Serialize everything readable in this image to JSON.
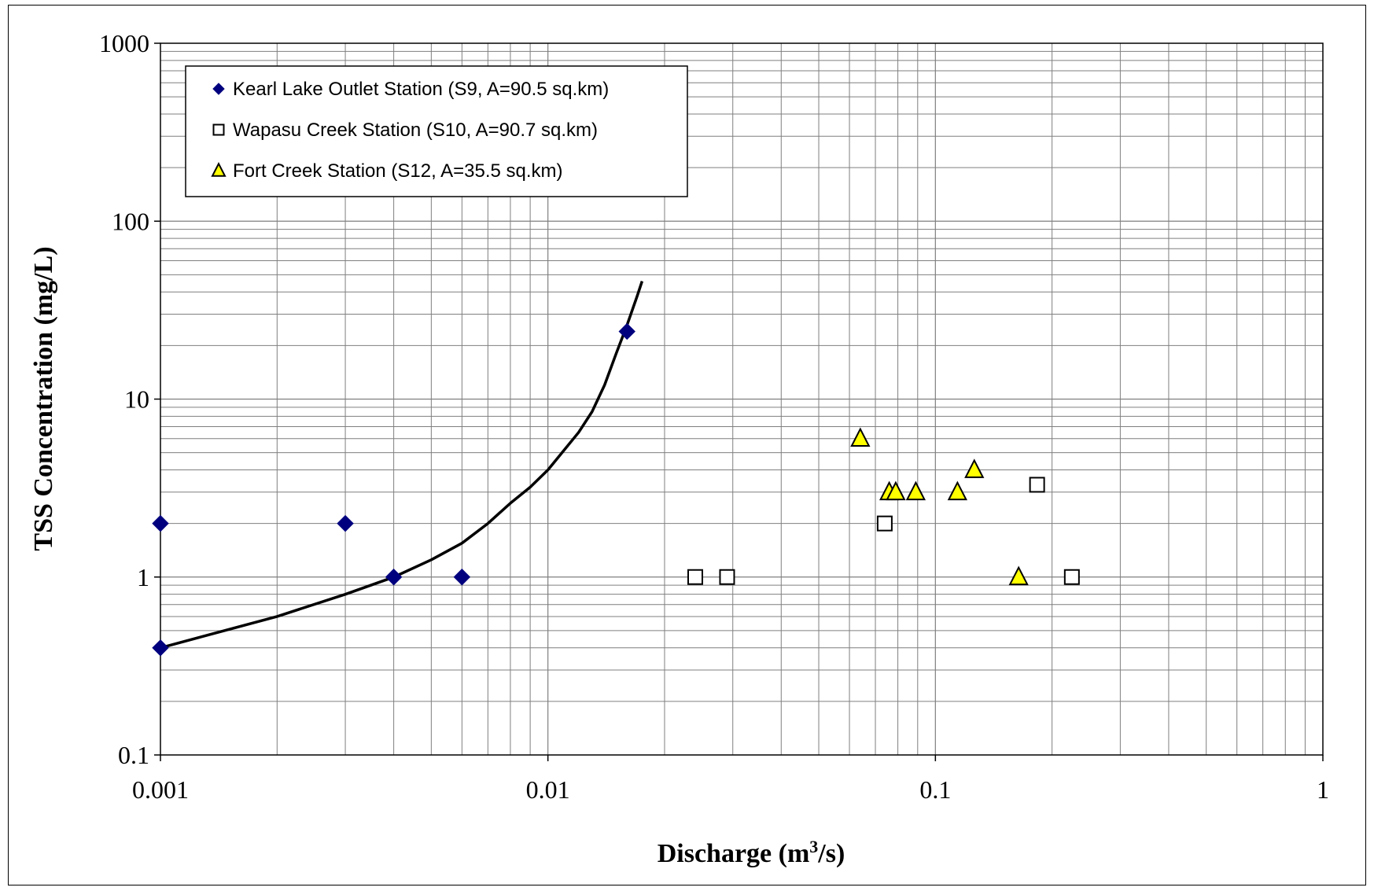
{
  "chart_data": {
    "type": "scatter",
    "x_scale": "log",
    "y_scale": "log",
    "xlim": [
      0.001,
      1
    ],
    "ylim": [
      0.1,
      1000
    ],
    "grid": true,
    "legend_position": "top-left",
    "xlabel": {
      "main": "Discharge (m",
      "sup": "3",
      "end": "/s)"
    },
    "ylabel": "TSS Concentration (mg/L)",
    "x_ticks": [
      "0.001",
      "0.01",
      "0.1",
      "1"
    ],
    "y_ticks": [
      "0.1",
      "1",
      "10",
      "100",
      "1000"
    ],
    "series": [
      {
        "name": "Kearl Lake Outlet Station (S9, A=90.5 sq.km)",
        "marker": "diamond",
        "color": "#00007f",
        "points": [
          [
            0.001,
            2
          ],
          [
            0.001,
            0.4
          ],
          [
            0.003,
            2
          ],
          [
            0.004,
            1
          ],
          [
            0.006,
            1
          ],
          [
            0.016,
            24
          ]
        ]
      },
      {
        "name": "Wapasu Creek Station (S10, A=90.7 sq.km)",
        "marker": "square-open",
        "color": "#000000",
        "points": [
          [
            0.024,
            1
          ],
          [
            0.029,
            1
          ],
          [
            0.074,
            2
          ],
          [
            0.183,
            3.3
          ],
          [
            0.225,
            1
          ]
        ]
      },
      {
        "name": "Fort Creek Station (S12, A=35.5 sq.km)",
        "marker": "triangle",
        "color": "#ffff00",
        "points": [
          [
            0.064,
            6
          ],
          [
            0.076,
            3
          ],
          [
            0.079,
            3
          ],
          [
            0.089,
            3
          ],
          [
            0.114,
            3
          ],
          [
            0.126,
            4
          ],
          [
            0.164,
            1
          ]
        ]
      }
    ],
    "trend_line": {
      "color": "#000000",
      "points": [
        [
          0.001,
          0.4
        ],
        [
          0.002,
          0.6
        ],
        [
          0.003,
          0.8
        ],
        [
          0.004,
          1.0
        ],
        [
          0.005,
          1.25
        ],
        [
          0.006,
          1.55
        ],
        [
          0.007,
          2.0
        ],
        [
          0.008,
          2.6
        ],
        [
          0.009,
          3.2
        ],
        [
          0.01,
          4.0
        ],
        [
          0.012,
          6.5
        ],
        [
          0.013,
          8.5
        ],
        [
          0.014,
          12
        ],
        [
          0.015,
          18
        ],
        [
          0.016,
          26
        ],
        [
          0.017,
          38
        ],
        [
          0.0175,
          46
        ]
      ]
    }
  }
}
